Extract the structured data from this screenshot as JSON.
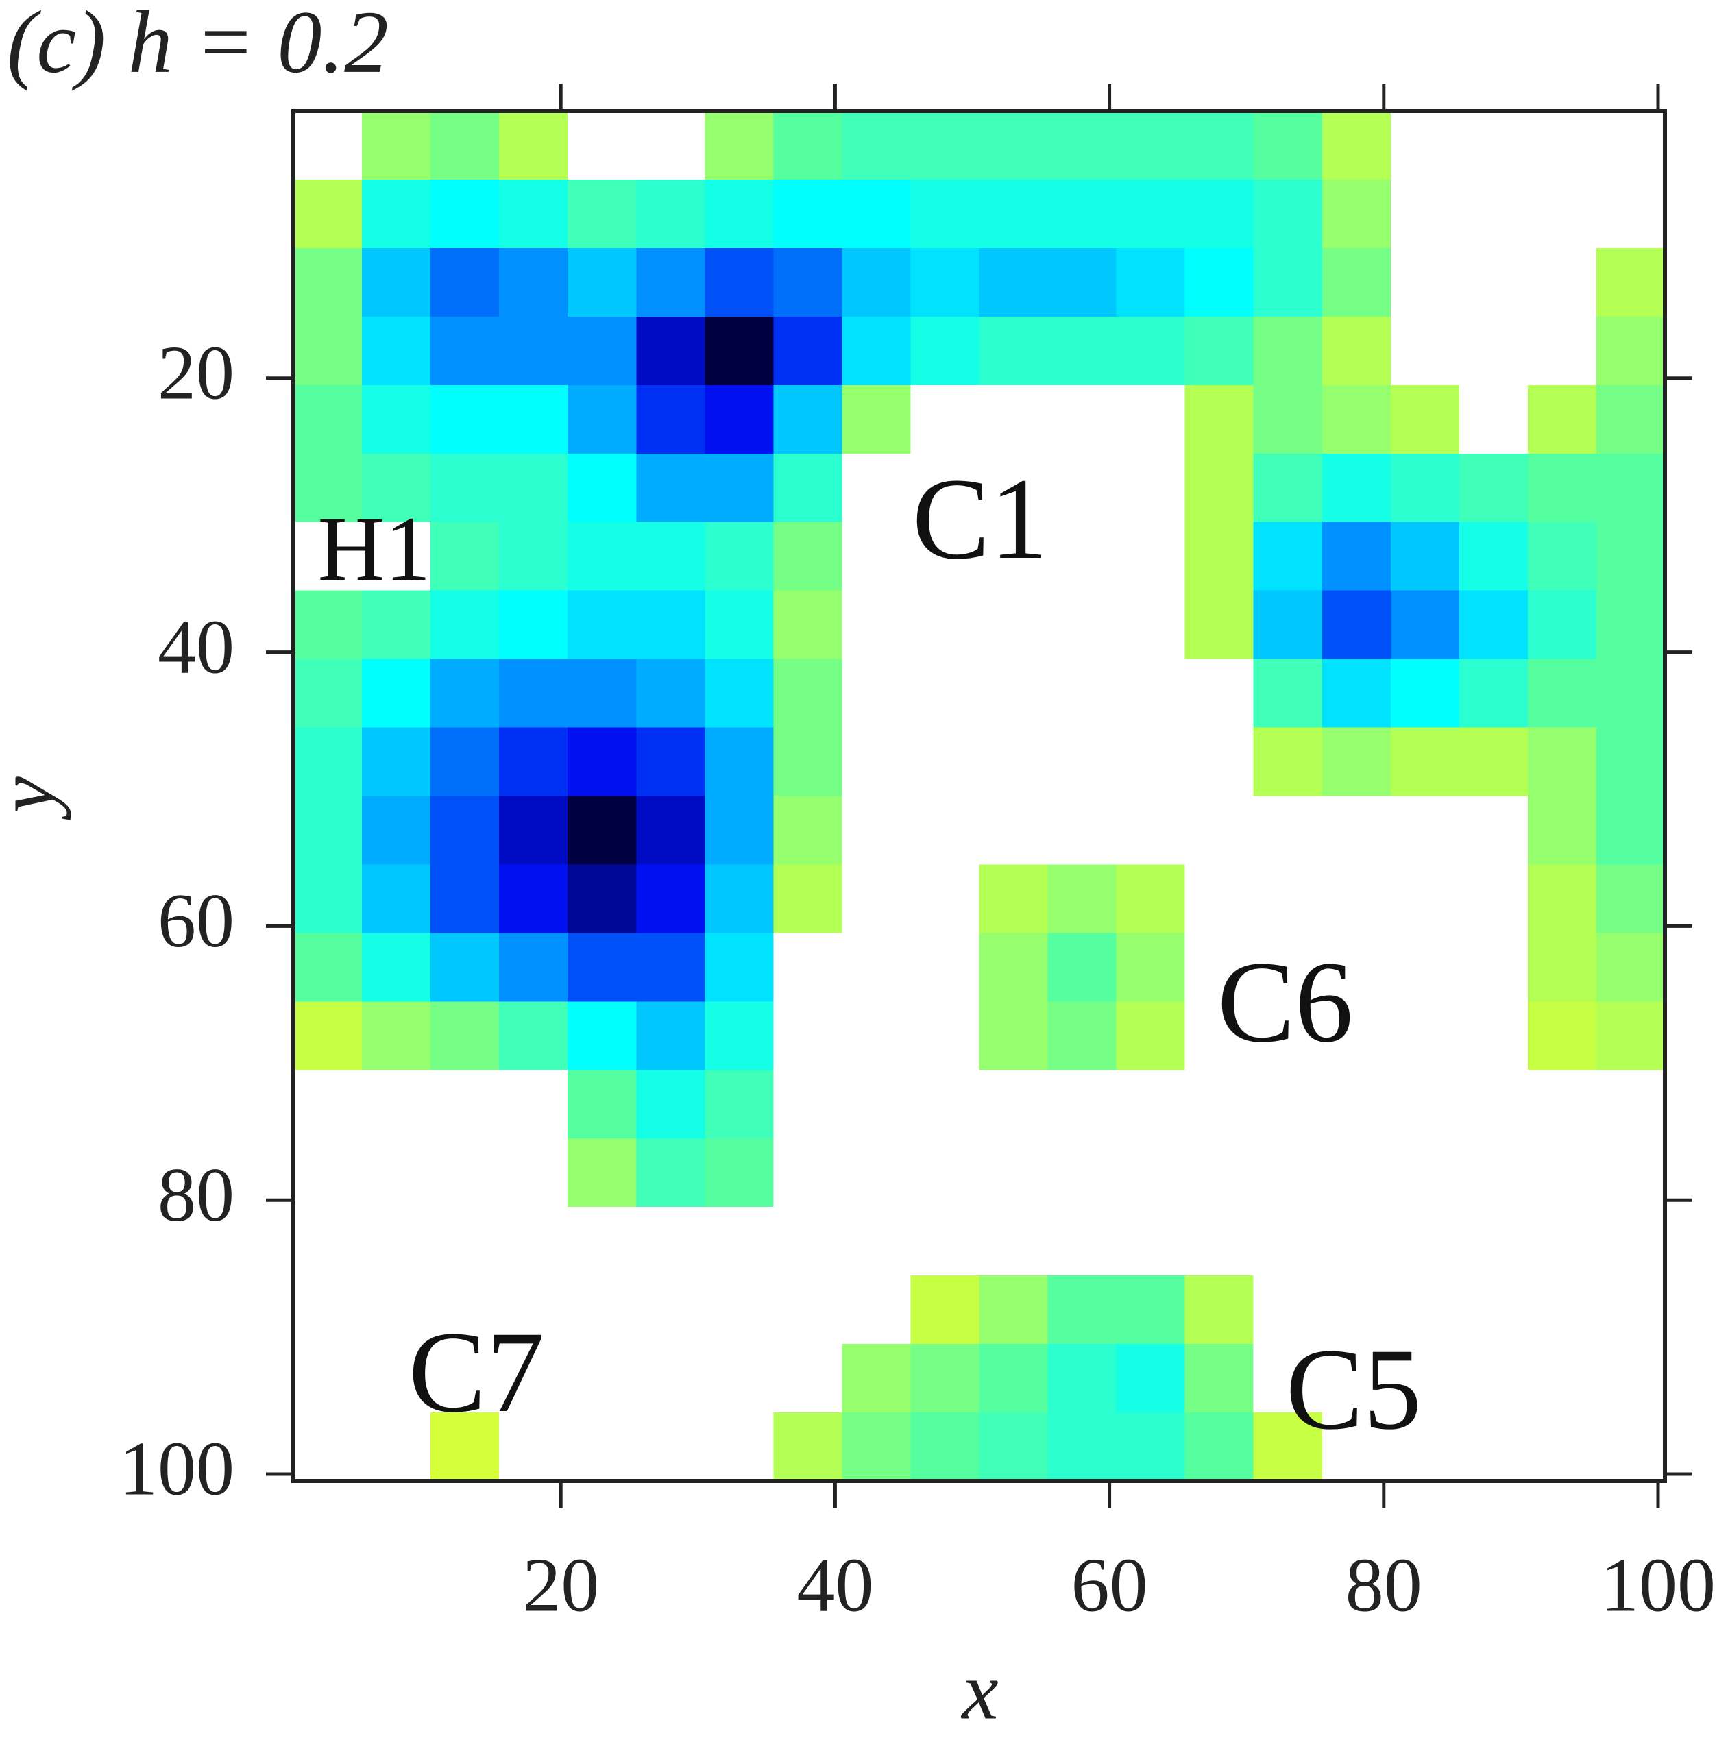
{
  "chart_data": {
    "type": "heatmap",
    "title": "(c) h = 0.2",
    "x_label": "x",
    "y_label": "y",
    "annotations": [
      "C1",
      "H1",
      "C6",
      "C5",
      "C7"
    ],
    "xlim": [
      0.5,
      100.5
    ],
    "ylim": [
      0.5,
      100.5
    ],
    "y_reversed": true,
    "xticks": [
      20,
      40,
      60,
      80,
      100
    ],
    "yticks": [
      20,
      40,
      60,
      80,
      100
    ],
    "zlim": [
      0,
      1
    ],
    "colormap": [
      "#d4ff3a",
      "#55ffa0",
      "#00ffff",
      "#0090ff",
      "#0010f0",
      "#000040"
    ],
    "null_color": "#ffffff",
    "x": [
      3,
      8,
      13,
      18,
      23,
      28,
      33,
      38,
      43,
      48,
      53,
      58,
      63,
      68,
      73,
      78,
      83,
      88,
      93,
      98
    ],
    "y": [
      3,
      8,
      13,
      18,
      23,
      28,
      33,
      38,
      43,
      48,
      53,
      58,
      63,
      68,
      73,
      78,
      83,
      88,
      93,
      98
    ],
    "z": [
      [
        null,
        0.1,
        0.15,
        0.05,
        null,
        null,
        0.1,
        0.2,
        0.25,
        0.25,
        0.25,
        0.25,
        0.25,
        0.25,
        0.2,
        0.05,
        null,
        null,
        null,
        null
      ],
      [
        0.05,
        0.35,
        0.4,
        0.35,
        0.25,
        0.3,
        0.35,
        0.4,
        0.4,
        0.35,
        0.35,
        0.35,
        0.35,
        0.35,
        0.3,
        0.1,
        null,
        null,
        null,
        null
      ],
      [
        0.15,
        0.5,
        0.65,
        0.6,
        0.5,
        0.6,
        0.7,
        0.65,
        0.5,
        0.45,
        0.5,
        0.5,
        0.45,
        0.4,
        0.3,
        0.15,
        null,
        null,
        null,
        0.05
      ],
      [
        0.15,
        0.45,
        0.6,
        0.6,
        0.6,
        0.85,
        1.0,
        0.75,
        0.45,
        0.35,
        0.3,
        0.3,
        0.3,
        0.25,
        0.15,
        0.05,
        null,
        null,
        null,
        0.1
      ],
      [
        0.2,
        0.35,
        0.4,
        0.4,
        0.55,
        0.75,
        0.8,
        0.5,
        0.1,
        null,
        null,
        null,
        null,
        0.05,
        0.15,
        0.1,
        0.05,
        null,
        0.05,
        0.15
      ],
      [
        0.2,
        0.25,
        0.3,
        0.3,
        0.4,
        0.55,
        0.55,
        0.3,
        null,
        null,
        null,
        null,
        null,
        0.05,
        0.25,
        0.35,
        0.3,
        0.25,
        0.2,
        0.2
      ],
      [
        null,
        null,
        0.25,
        0.3,
        0.35,
        0.35,
        0.3,
        0.15,
        null,
        null,
        null,
        null,
        null,
        0.05,
        0.45,
        0.6,
        0.5,
        0.35,
        0.25,
        0.2
      ],
      [
        0.2,
        0.25,
        0.35,
        0.4,
        0.45,
        0.45,
        0.35,
        0.1,
        null,
        null,
        null,
        null,
        null,
        0.05,
        0.5,
        0.7,
        0.6,
        0.45,
        0.3,
        0.2
      ],
      [
        0.25,
        0.4,
        0.55,
        0.6,
        0.6,
        0.55,
        0.45,
        0.15,
        null,
        null,
        null,
        null,
        null,
        null,
        0.25,
        0.45,
        0.4,
        0.3,
        0.2,
        0.2
      ],
      [
        0.3,
        0.5,
        0.65,
        0.75,
        0.8,
        0.75,
        0.55,
        0.15,
        null,
        null,
        null,
        null,
        null,
        null,
        0.05,
        0.1,
        0.05,
        0.05,
        0.1,
        0.2
      ],
      [
        0.3,
        0.55,
        0.7,
        0.85,
        1.0,
        0.85,
        0.55,
        0.1,
        null,
        null,
        null,
        null,
        null,
        null,
        null,
        null,
        null,
        null,
        0.1,
        0.2
      ],
      [
        0.3,
        0.5,
        0.7,
        0.8,
        0.9,
        0.8,
        0.5,
        0.05,
        null,
        null,
        0.05,
        0.1,
        0.05,
        null,
        null,
        null,
        null,
        null,
        0.05,
        0.15
      ],
      [
        0.2,
        0.35,
        0.5,
        0.6,
        0.7,
        0.7,
        0.45,
        null,
        null,
        null,
        0.1,
        0.2,
        0.1,
        null,
        null,
        null,
        null,
        null,
        0.05,
        0.1
      ],
      [
        0.02,
        0.1,
        0.15,
        0.25,
        0.4,
        0.5,
        0.35,
        null,
        null,
        null,
        0.1,
        0.15,
        0.05,
        null,
        null,
        null,
        null,
        null,
        0.02,
        0.05
      ],
      [
        null,
        null,
        null,
        null,
        0.2,
        0.35,
        0.25,
        null,
        null,
        null,
        null,
        null,
        null,
        null,
        null,
        null,
        null,
        null,
        null,
        null
      ],
      [
        null,
        null,
        null,
        null,
        0.1,
        0.25,
        0.2,
        null,
        null,
        null,
        null,
        null,
        null,
        null,
        null,
        null,
        null,
        null,
        null,
        null
      ],
      [
        null,
        null,
        null,
        null,
        null,
        null,
        null,
        null,
        null,
        null,
        null,
        null,
        null,
        null,
        null,
        null,
        null,
        null,
        null,
        null
      ],
      [
        null,
        null,
        null,
        null,
        null,
        null,
        null,
        null,
        null,
        0.02,
        0.1,
        0.2,
        0.2,
        0.05,
        null,
        null,
        null,
        null,
        null,
        null
      ],
      [
        null,
        null,
        null,
        null,
        null,
        null,
        null,
        null,
        0.1,
        0.15,
        0.2,
        0.3,
        0.35,
        0.15,
        null,
        null,
        null,
        null,
        null,
        null
      ],
      [
        null,
        null,
        0,
        null,
        null,
        null,
        null,
        0.05,
        0.15,
        0.2,
        0.25,
        0.3,
        0.3,
        0.2,
        0.02,
        null,
        null,
        null,
        null,
        null
      ]
    ]
  }
}
